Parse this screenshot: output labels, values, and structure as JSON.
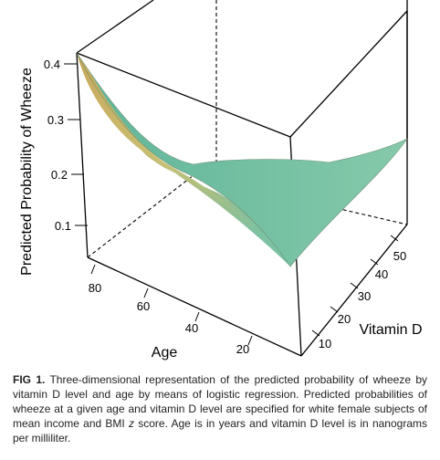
{
  "chart_data": {
    "type": "surface3d",
    "zlabel": "Predicted Probability of Wheeze",
    "xlabel": "Age",
    "ylabel": "Vitamin D",
    "z_ticks": [
      "0.1",
      "0.2",
      "0.3",
      "0.4"
    ],
    "age_ticks": [
      "80",
      "60",
      "40",
      "20"
    ],
    "vitd_ticks": [
      "10",
      "20",
      "30",
      "40",
      "50"
    ],
    "surface_corners": [
      {
        "age": 85,
        "vitamin_d": 5,
        "probability": 0.42
      },
      {
        "age": 85,
        "vitamin_d": 55,
        "probability": 0.2
      },
      {
        "age": 10,
        "vitamin_d": 5,
        "probability": 0.02
      },
      {
        "age": 10,
        "vitamin_d": 55,
        "probability": 0.23
      }
    ],
    "colors": {
      "low": "#6fbfa3",
      "high": "#d8b45c",
      "edge": "#8b8b5a"
    }
  },
  "caption": {
    "label": "FIG 1.",
    "part1": " Three-dimensional representation of the predicted probability of wheeze by vitamin D level and age by means of logistic regression. Predicted probabilities of wheeze at a given age and vitamin D level are specified for white female subjects of mean income and BMI ",
    "italic": "z",
    "part2": " score. Age is in years and vitamin D level is in nanograms per milliliter."
  }
}
